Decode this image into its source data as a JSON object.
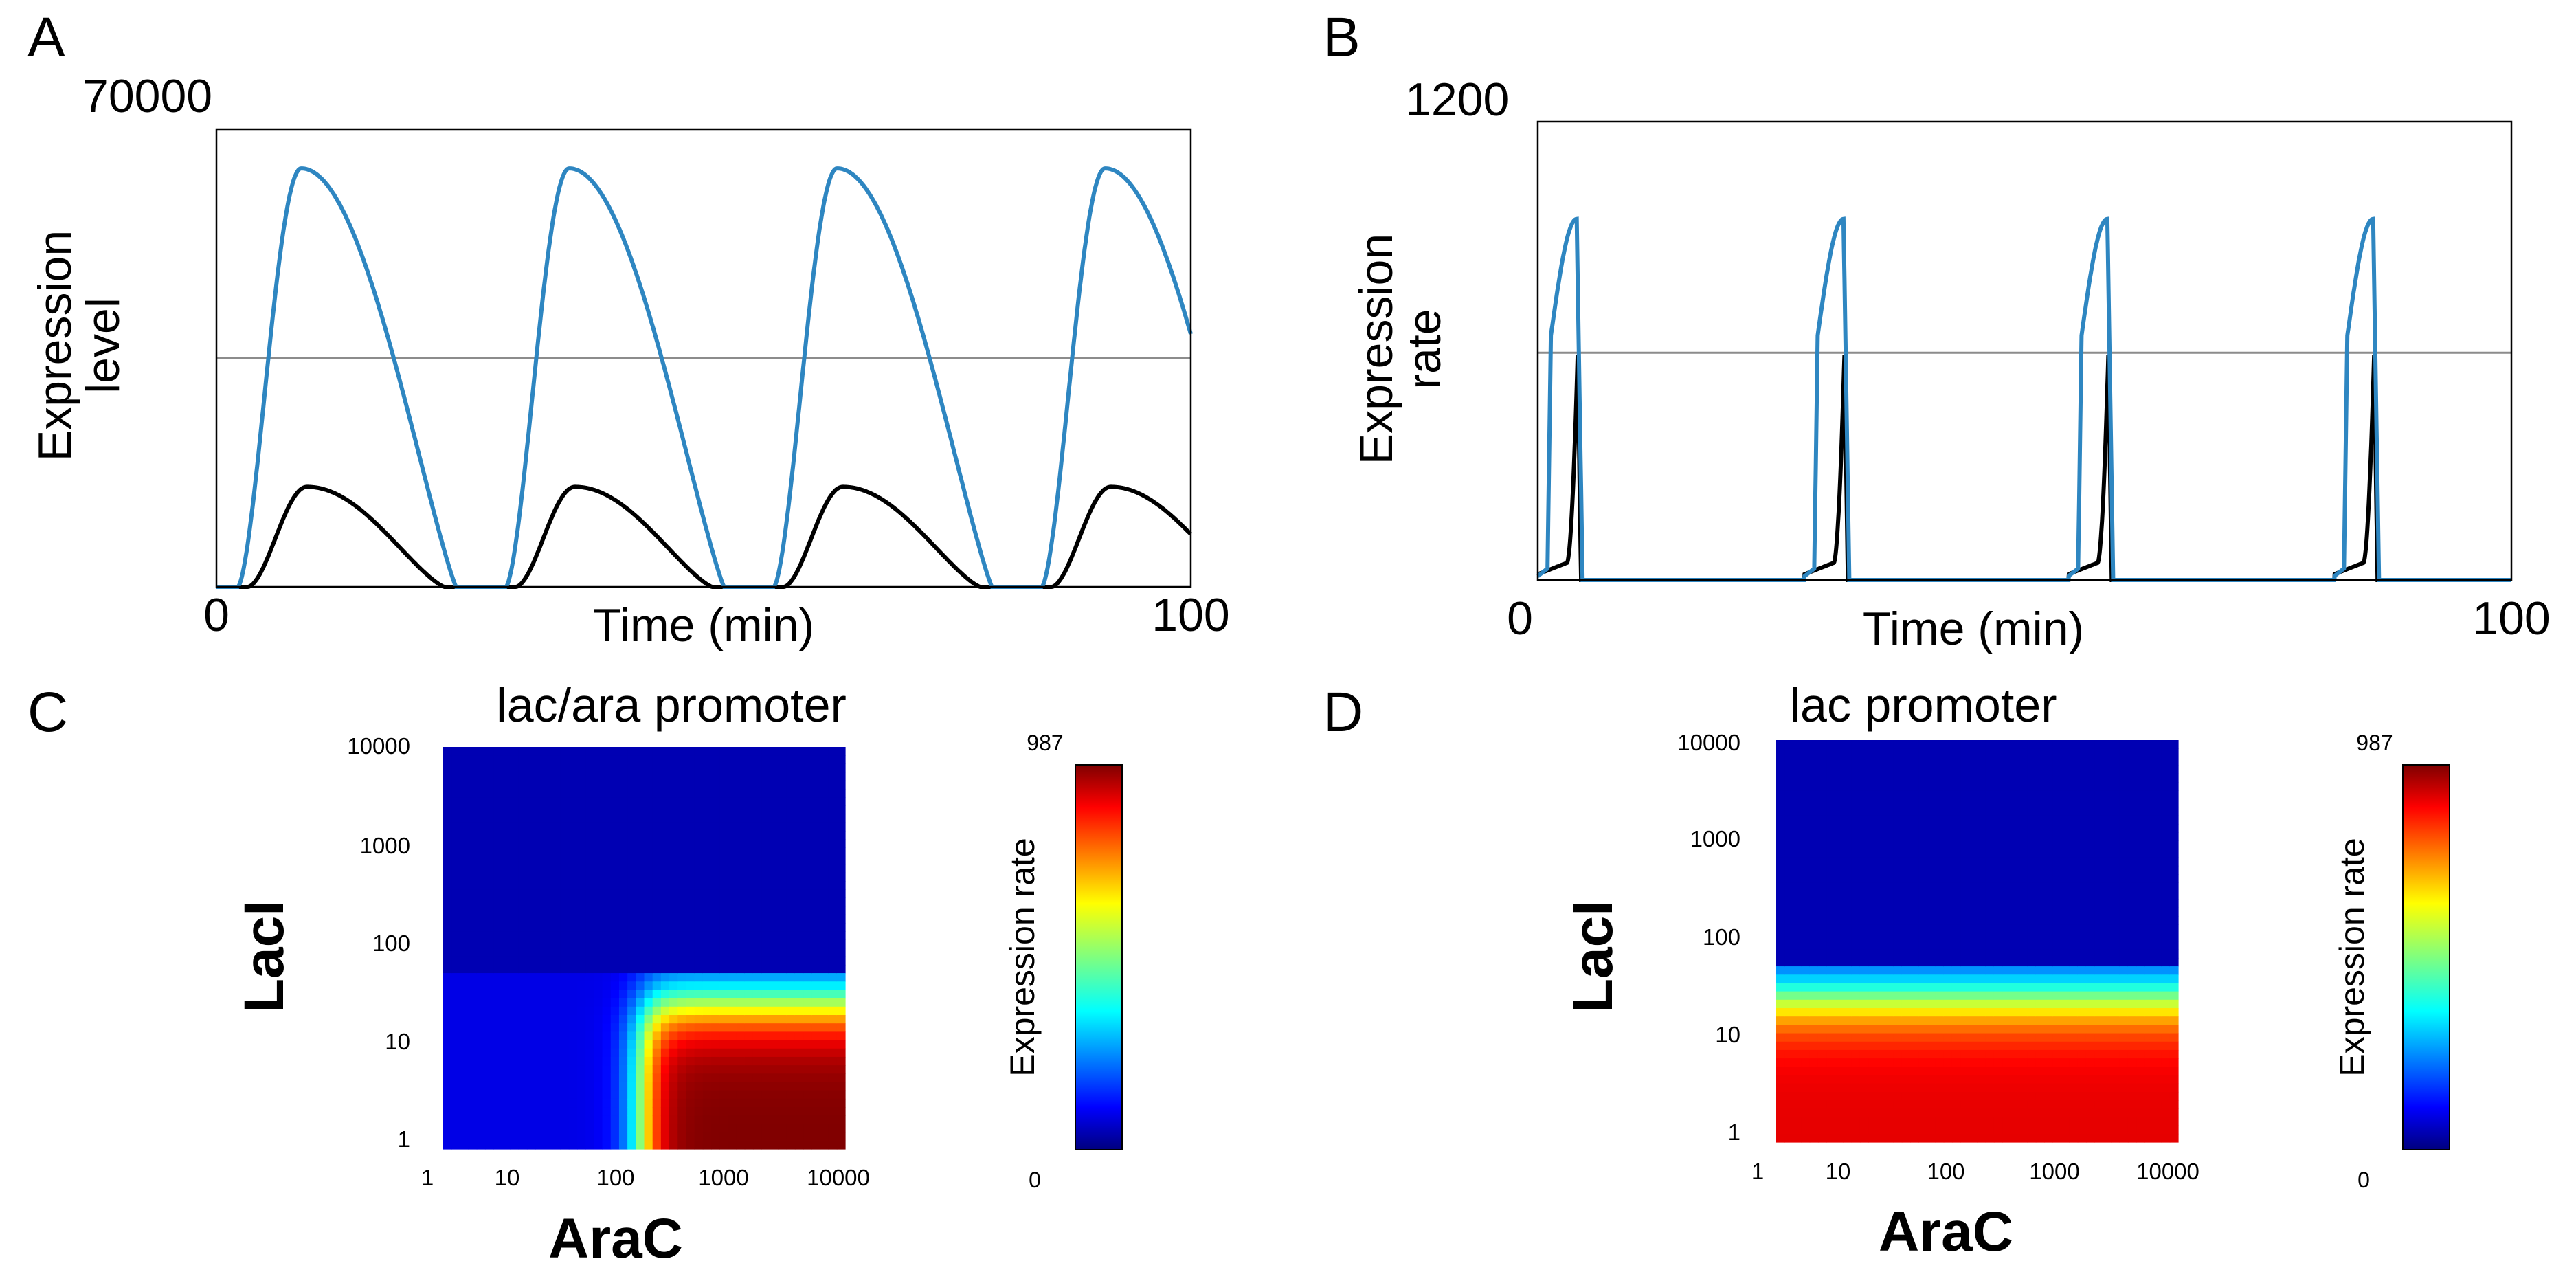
{
  "chart_data": [
    {
      "panel": "A",
      "type": "line",
      "xlabel": "Time (min)",
      "ylabel": [
        "Expression",
        "level"
      ],
      "xlim": [
        0,
        100
      ],
      "ylim": [
        0,
        70000
      ],
      "x_tick_labels": [
        "0",
        "100"
      ],
      "y_tick_labels": [
        "70000"
      ],
      "reference_line_y": 35000,
      "period": 27.5,
      "series": [
        {
          "name": "blue",
          "color": "#2e86c1",
          "peak": 64000,
          "first_peak_x": 8.7
        },
        {
          "name": "black",
          "color": "#000000",
          "peak": 15300,
          "first_peak_x": 9.3
        }
      ]
    },
    {
      "panel": "B",
      "type": "line",
      "xlabel": "Time (min)",
      "ylabel": [
        "Expression",
        "rate"
      ],
      "xlim": [
        0,
        100
      ],
      "ylim": [
        0,
        1200
      ],
      "x_tick_labels": [
        "0",
        "100"
      ],
      "y_tick_labels": [
        "1200"
      ],
      "reference_line_y": 595,
      "pulse_starts": [
        0.0,
        27.4,
        54.5,
        81.8
      ],
      "series": [
        {
          "name": "blue",
          "color": "#2e86c1",
          "peak": 945
        },
        {
          "name": "black",
          "color": "#000000",
          "peak": 590
        }
      ]
    },
    {
      "panel": "C",
      "type": "heatmap",
      "title": "lac/ara promoter",
      "xlabel": "AraC",
      "ylabel": "LacI",
      "x_tick_labels": [
        "1",
        "10",
        "100",
        "1000",
        "10000"
      ],
      "y_tick_labels": [
        "10000",
        "1000",
        "100",
        "10",
        "1"
      ],
      "x_range": [
        1,
        10000
      ],
      "y_range": [
        1,
        10000
      ],
      "model": "activator_and_repressor",
      "colorbar": {
        "label": "Expression rate",
        "min": 0,
        "max": 987,
        "min_label": "0",
        "max_label": "987"
      }
    },
    {
      "panel": "D",
      "type": "heatmap",
      "title": "lac promoter",
      "xlabel": "AraC",
      "ylabel": "LacI",
      "x_tick_labels": [
        "1",
        "10",
        "100",
        "1000",
        "10000"
      ],
      "y_tick_labels": [
        "10000",
        "1000",
        "100",
        "10",
        "1"
      ],
      "x_range": [
        1,
        10000
      ],
      "y_range": [
        1,
        10000
      ],
      "model": "repressor_only",
      "colorbar": {
        "label": "Expression rate",
        "min": 0,
        "max": 987,
        "min_label": "0",
        "max_label": "987"
      }
    }
  ]
}
